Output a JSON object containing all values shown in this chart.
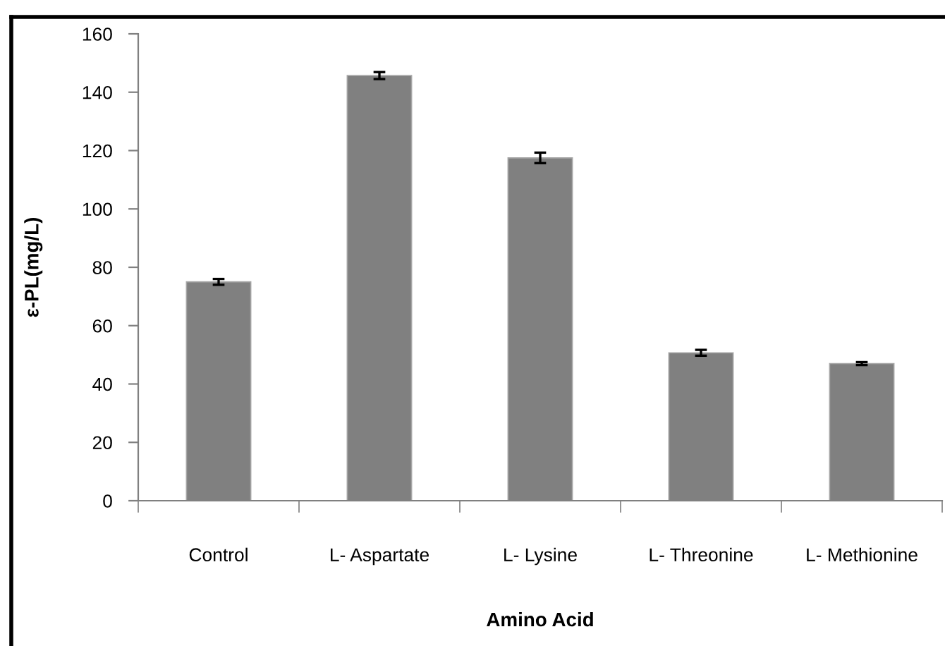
{
  "chart_data": {
    "type": "bar",
    "xlabel": "Amino Acid",
    "ylabel": "ε-PL(mg/L)",
    "categories": [
      "Control",
      "L- Aspartate",
      "L- Lysine",
      "L- Threonine",
      "L- Methionine"
    ],
    "values": [
      75,
      145.7,
      117.5,
      50.7,
      47
    ],
    "errors": [
      1,
      1.2,
      1.8,
      1,
      0.5
    ],
    "color": "#808080",
    "ylim": [
      0,
      160
    ],
    "yticks": [
      0,
      20,
      40,
      60,
      80,
      100,
      120,
      140,
      160
    ],
    "grid": false,
    "legend": false
  }
}
